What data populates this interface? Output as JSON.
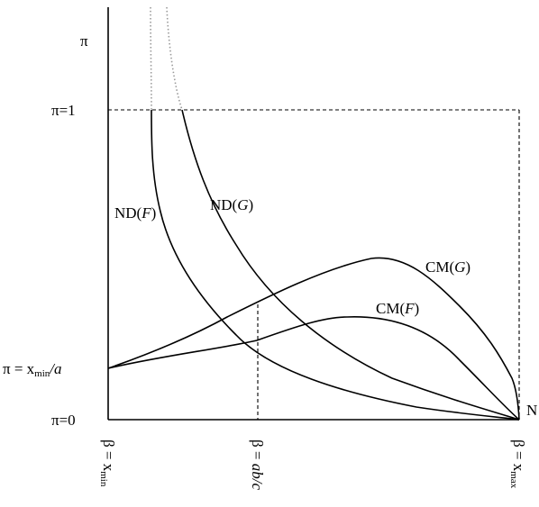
{
  "y_axis": {
    "pi_label": "π",
    "pi_one": "π=1",
    "pi_min": {
      "prefix": "π = x",
      "sub": "min",
      "suffix": "/a"
    },
    "pi_zero": "π=0"
  },
  "x_axis": {
    "beta_min": {
      "prefix": "β = x",
      "sub": "min"
    },
    "beta_mid": "β = ab/c",
    "beta_max": {
      "prefix": "β = x",
      "sub": "max"
    },
    "end_label": "N"
  },
  "curves": {
    "nd_f": {
      "prefix": "ND(",
      "var": "F",
      "suffix": ")"
    },
    "nd_g": {
      "prefix": "ND(",
      "var": "G",
      "suffix": ")"
    },
    "cm_f": {
      "prefix": "CM(",
      "var": "F",
      "suffix": ")"
    },
    "cm_g": {
      "prefix": "CM(",
      "var": "G",
      "suffix": ")"
    }
  }
}
